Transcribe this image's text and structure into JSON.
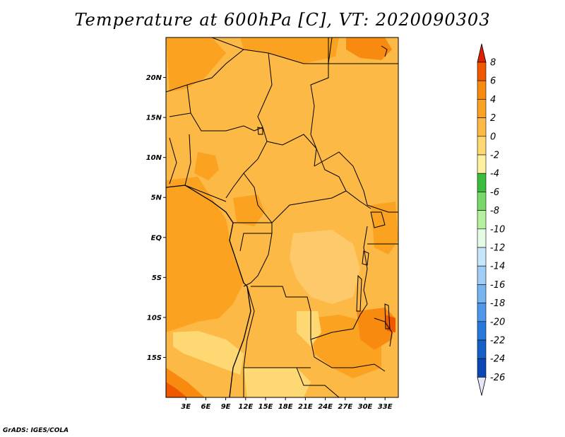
{
  "title": "Temperature at 600hPa [C], VT: 2020090303",
  "credit": "GrADS: IGES/COLA",
  "map": {
    "lon_range": [
      0,
      35
    ],
    "lat_range": [
      -20,
      25
    ],
    "lat_ticks": [
      {
        "value": 20,
        "label": "20N"
      },
      {
        "value": 15,
        "label": "15N"
      },
      {
        "value": 10,
        "label": "10N"
      },
      {
        "value": 5,
        "label": "5N"
      },
      {
        "value": 0,
        "label": "EQ"
      },
      {
        "value": -5,
        "label": "5S"
      },
      {
        "value": -10,
        "label": "10S"
      },
      {
        "value": -15,
        "label": "15S"
      }
    ],
    "lon_ticks": [
      {
        "value": 3,
        "label": "3E"
      },
      {
        "value": 6,
        "label": "6E"
      },
      {
        "value": 9,
        "label": "9E"
      },
      {
        "value": 12,
        "label": "12E"
      },
      {
        "value": 15,
        "label": "15E"
      },
      {
        "value": 18,
        "label": "18E"
      },
      {
        "value": 21,
        "label": "21E"
      },
      {
        "value": 24,
        "label": "24E"
      },
      {
        "value": 27,
        "label": "27E"
      },
      {
        "value": 30,
        "label": "30E"
      },
      {
        "value": 33,
        "label": "33E"
      }
    ]
  },
  "colorbar": {
    "labels": [
      "8",
      "6",
      "4",
      "2",
      "0",
      "-2",
      "-4",
      "-6",
      "-8",
      "-10",
      "-12",
      "-14",
      "-16",
      "-18",
      "-20",
      "-22",
      "-24",
      "-26"
    ],
    "colors": [
      "#e02000",
      "#f05800",
      "#f88a10",
      "#fba321",
      "#fdb945",
      "#fed873",
      "#fff0a0",
      "#3cbc3c",
      "#78d96a",
      "#b4f0a0",
      "#e6fbe6",
      "#c8e6fa",
      "#a0cdf5",
      "#78b4f0",
      "#5096eb",
      "#2878dc",
      "#1460c8",
      "#0a46b4",
      "#051e82",
      "#000064"
    ],
    "top_color": "#e02000",
    "bottom_color": "#e6e6fa"
  }
}
